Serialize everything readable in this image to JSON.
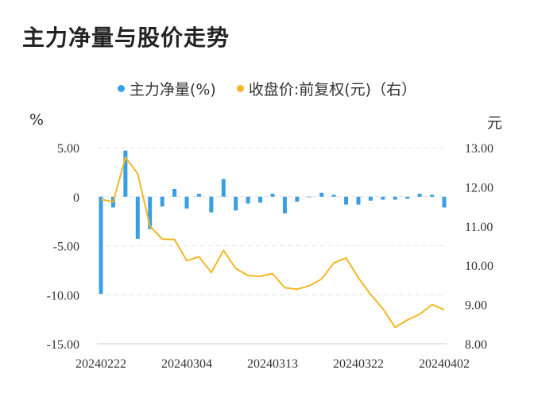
{
  "title": "主力净量与股价走势",
  "legend": {
    "series1": "主力净量(%)",
    "series2": "收盘价:前复权(元)（右）"
  },
  "units": {
    "left": "%",
    "right": "元"
  },
  "colors": {
    "bar": "#3a9ee4",
    "line": "#f4b624",
    "grid": "#e3e3e3",
    "axis": "#cccccc"
  },
  "chart_data": {
    "type": "bar",
    "x_tick_labels": [
      "20240222",
      "20240304",
      "20240313",
      "20240322",
      "20240402"
    ],
    "x": [
      "20240222",
      "20240223",
      "20240226",
      "20240227",
      "20240228",
      "20240229",
      "20240301",
      "20240304",
      "20240305",
      "20240306",
      "20240307",
      "20240308",
      "20240311",
      "20240312",
      "20240313",
      "20240314",
      "20240315",
      "20240318",
      "20240319",
      "20240320",
      "20240321",
      "20240322",
      "20240325",
      "20240326",
      "20240327",
      "20240328",
      "20240329",
      "20240401",
      "20240402"
    ],
    "series": [
      {
        "name": "主力净量(%)",
        "axis": "left",
        "type": "bar",
        "values": [
          -9.9,
          -1.1,
          4.7,
          -4.3,
          -3.3,
          -1.0,
          0.8,
          -1.2,
          0.3,
          -1.6,
          1.8,
          -1.4,
          -0.7,
          -0.6,
          0.3,
          -1.7,
          -0.5,
          0.0,
          0.4,
          0.2,
          -0.8,
          -0.8,
          -0.4,
          -0.3,
          -0.3,
          -0.2,
          0.3,
          0.2,
          -1.1
        ]
      },
      {
        "name": "收盘价:前复权(元)（右）",
        "axis": "right",
        "type": "line",
        "values": [
          11.68,
          11.62,
          12.75,
          12.34,
          11.0,
          10.67,
          10.66,
          10.12,
          10.22,
          9.82,
          10.38,
          9.92,
          9.74,
          9.72,
          9.79,
          9.43,
          9.39,
          9.48,
          9.65,
          10.06,
          10.19,
          9.68,
          9.26,
          8.89,
          8.42,
          8.61,
          8.75,
          9.0,
          8.87
        ]
      }
    ],
    "left_axis": {
      "ticks": [
        "5.00",
        "0",
        "-5.00",
        "-10.00",
        "-15.00"
      ],
      "range": [
        -15,
        5
      ]
    },
    "right_axis": {
      "ticks": [
        "13.00",
        "12.00",
        "11.00",
        "10.00",
        "9.00",
        "8.00"
      ],
      "range": [
        8,
        13
      ]
    },
    "grid": true,
    "legend_position": "top"
  }
}
